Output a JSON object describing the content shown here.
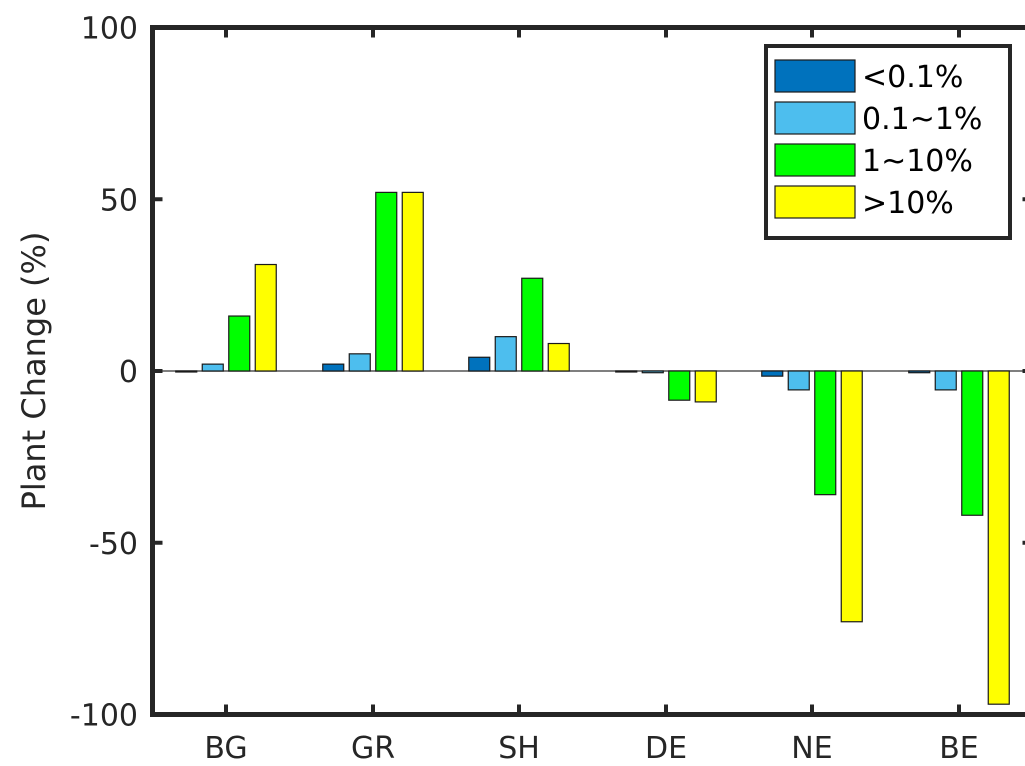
{
  "chart_data": {
    "type": "bar",
    "title": "",
    "xlabel": "",
    "ylabel": "Plant Change (%)",
    "ylim": [
      -100,
      100
    ],
    "yticks": [
      100,
      50,
      0,
      -50,
      -100
    ],
    "ytick_labels": [
      "100",
      "50",
      "0",
      "-50",
      "-100"
    ],
    "categories": [
      "BG",
      "GR",
      "SH",
      "DE",
      "NE",
      "BE"
    ],
    "series": [
      {
        "name": "<0.1%",
        "color": "#0072BD",
        "values": [
          0,
          2,
          4,
          0,
          -1.5,
          -0.5
        ]
      },
      {
        "name": "0.1~1%",
        "color": "#4DBEEE",
        "values": [
          2,
          5,
          10,
          -0.5,
          -5.5,
          -5.5
        ]
      },
      {
        "name": "1~10%",
        "color": "#00FF00",
        "values": [
          16,
          52,
          27,
          -8.5,
          -36,
          -42
        ]
      },
      {
        "name": ">10%",
        "color": "#FFFF00",
        "values": [
          31,
          52,
          8,
          -9,
          -73,
          -97
        ]
      }
    ],
    "legend_position": "top-right",
    "grid": false
  }
}
